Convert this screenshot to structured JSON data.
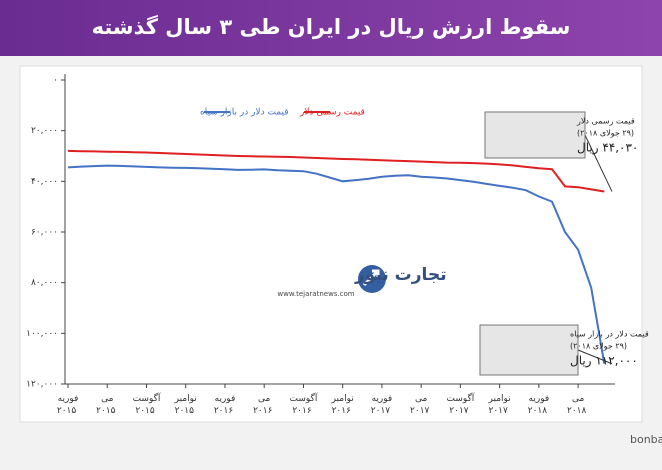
{
  "chart_data": {
    "type": "line",
    "title": "سقوط ارزش ریال در ایران طی ۳ سال گذشته",
    "source": "منابع: بانک مرکزی ایران، bonbast.com",
    "logo": {
      "name": "تجارت نیوز",
      "url": "www.tejaratnews.com"
    },
    "y_reversed": true,
    "ylim": [
      0,
      120000
    ],
    "yticks": [
      {
        "value": 0,
        "label": "۰"
      },
      {
        "value": 20000,
        "label": "۲۰,۰۰۰"
      },
      {
        "value": 40000,
        "label": "۴۰,۰۰۰"
      },
      {
        "value": 60000,
        "label": "۶۰,۰۰۰"
      },
      {
        "value": 80000,
        "label": "۸۰,۰۰۰"
      },
      {
        "value": 100000,
        "label": "۱۰۰,۰۰۰"
      },
      {
        "value": 120000,
        "label": "۱۲۰,۰۰۰"
      }
    ],
    "xticks": [
      {
        "value": "2015-02",
        "label": "فوریه ۲۰۱۵"
      },
      {
        "value": "2015-05",
        "label": "می ۲۰۱۵"
      },
      {
        "value": "2015-08",
        "label": "آگوست ۲۰۱۵"
      },
      {
        "value": "2015-11",
        "label": "نوامبر ۲۰۱۵"
      },
      {
        "value": "2016-02",
        "label": "فوریه ۲۰۱۶"
      },
      {
        "value": "2016-05",
        "label": "می ۲۰۱۶"
      },
      {
        "value": "2016-08",
        "label": "آگوست ۲۰۱۶"
      },
      {
        "value": "2016-11",
        "label": "نوامبر ۲۰۱۶"
      },
      {
        "value": "2017-02",
        "label": "فوریه ۲۰۱۷"
      },
      {
        "value": "2017-05",
        "label": "می ۲۰۱۷"
      },
      {
        "value": "2017-08",
        "label": "آگوست ۲۰۱۷"
      },
      {
        "value": "2017-11",
        "label": "نوامبر ۲۰۱۷"
      },
      {
        "value": "2018-02",
        "label": "فوریه ۲۰۱۸"
      },
      {
        "value": "2018-05",
        "label": "می ۲۰۱۸"
      }
    ],
    "x": [
      "2015-02",
      "2015-03",
      "2015-04",
      "2015-05",
      "2015-06",
      "2015-07",
      "2015-08",
      "2015-09",
      "2015-10",
      "2015-11",
      "2015-12",
      "2016-01",
      "2016-02",
      "2016-03",
      "2016-04",
      "2016-05",
      "2016-06",
      "2016-07",
      "2016-08",
      "2016-09",
      "2016-10",
      "2016-11",
      "2016-12",
      "2017-01",
      "2017-02",
      "2017-03",
      "2017-04",
      "2017-05",
      "2017-06",
      "2017-07",
      "2017-08",
      "2017-09",
      "2017-10",
      "2017-11",
      "2017-12",
      "2018-01",
      "2018-02",
      "2018-03",
      "2018-04",
      "2018-05",
      "2018-06",
      "2018-07"
    ],
    "series": [
      {
        "name": "قیمت دلار در بازار سیاه",
        "color": "#4472c4",
        "values": [
          34500,
          34200,
          34000,
          33800,
          33900,
          34100,
          34300,
          34500,
          34600,
          34700,
          34800,
          35000,
          35200,
          35500,
          35400,
          35300,
          35600,
          35800,
          36000,
          37000,
          38500,
          40000,
          39500,
          39000,
          38200,
          37800,
          37600,
          38200,
          38500,
          38900,
          39500,
          40200,
          41000,
          41800,
          42500,
          43500,
          46000,
          48000,
          60000,
          67000,
          82000,
          112000
        ]
      },
      {
        "name": "قیمت رسمی دلار",
        "color": "#e02020",
        "values": [
          28000,
          28100,
          28200,
          28300,
          28400,
          28500,
          28600,
          28800,
          29000,
          29200,
          29400,
          29600,
          29800,
          30000,
          30100,
          30200,
          30300,
          30400,
          30600,
          30800,
          31000,
          31200,
          31300,
          31500,
          31700,
          31900,
          32000,
          32200,
          32400,
          32600,
          32700,
          32800,
          33000,
          33300,
          33700,
          34300,
          34800,
          35200,
          42000,
          42300,
          43200,
          44030
        ]
      }
    ],
    "annotations": [
      {
        "lines": [
          "قیمت رسمی دلار",
          "(۲۹ جولای ۲۰۱۸)",
          "۴۴,۰۳۰ ریال"
        ]
      },
      {
        "lines": [
          "قیمت دلار در بازار سیاه",
          "(۲۹ جولای ۲۰۱۸)",
          "۱۱۲,۰۰۰ ریال"
        ]
      }
    ]
  }
}
